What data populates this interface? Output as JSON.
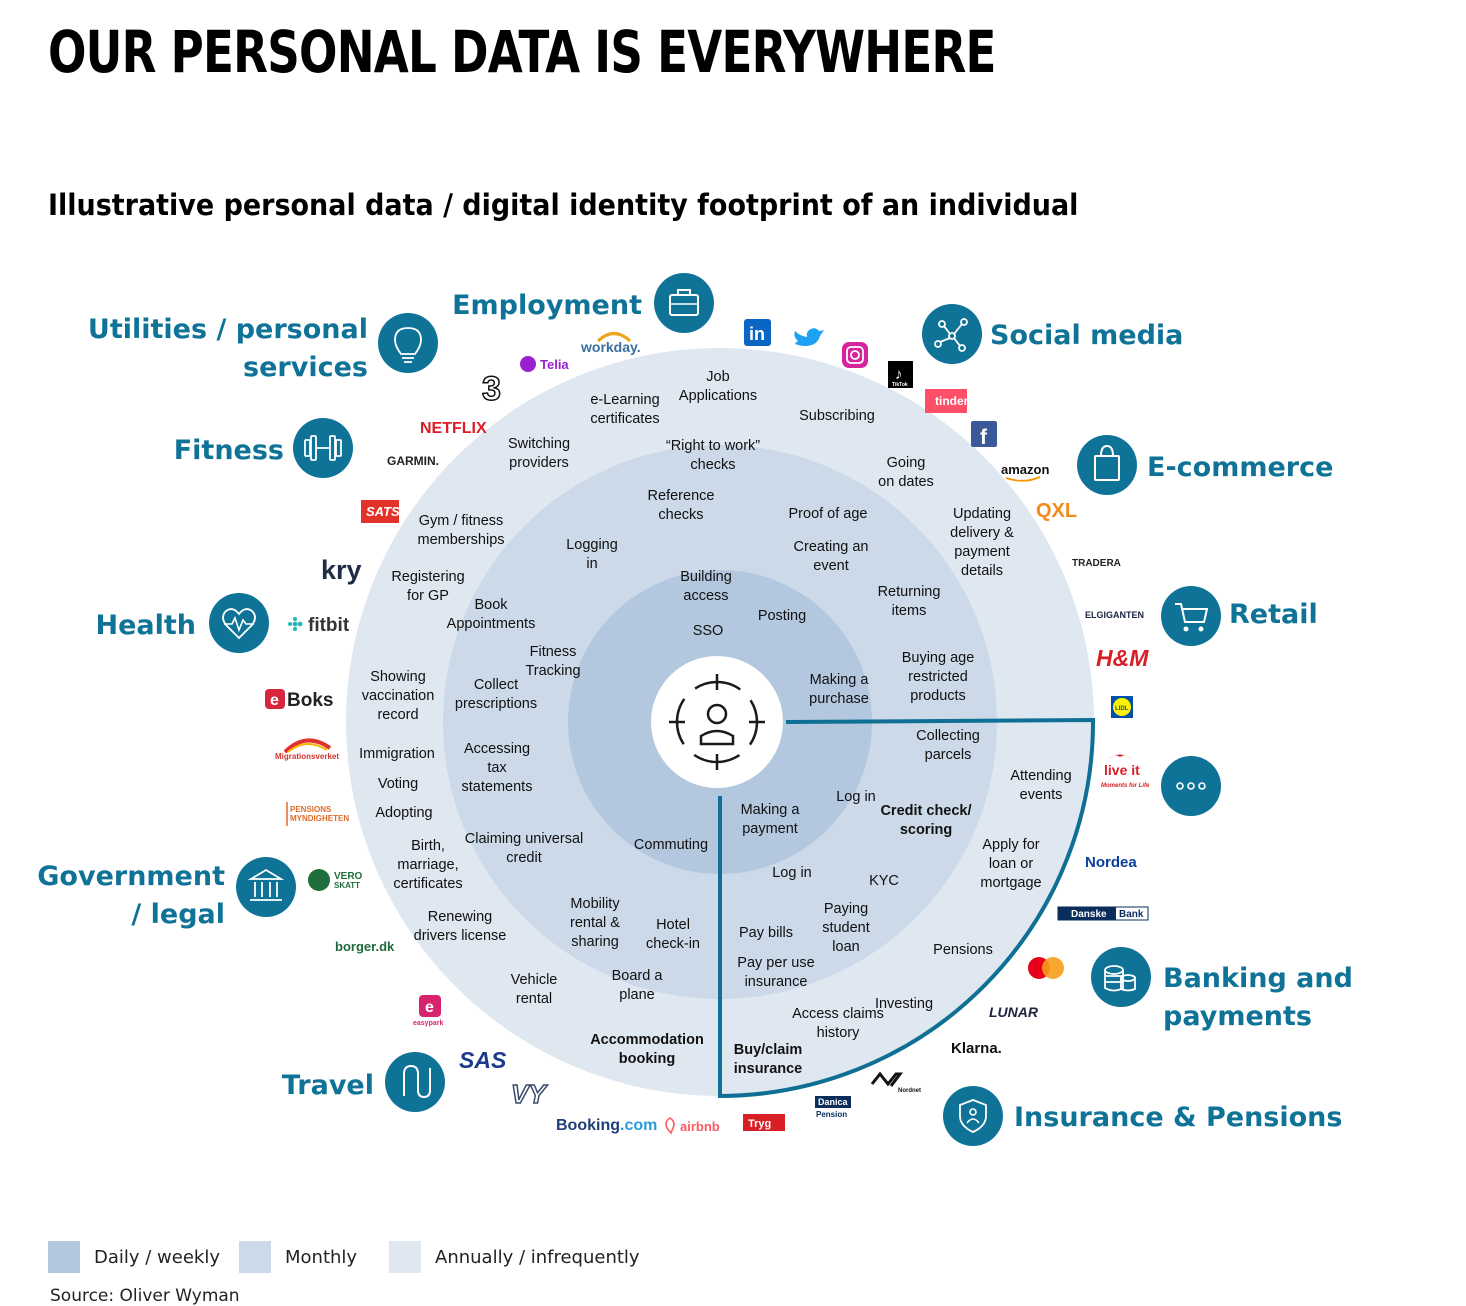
{
  "title": "OUR PERSONAL DATA IS EVERYWHERE",
  "subtitle": "Illustrative personal data / digital identity footprint of an individual",
  "colors": {
    "accent": "#0f7398",
    "ring_daily": "#b3c8de",
    "ring_monthly": "#cbd9e8",
    "ring_annual": "#dfe7f1",
    "highlight_border": "#0f6f94"
  },
  "categories": {
    "employment": "Employment",
    "social_media": "Social media",
    "ecommerce": "E-commerce",
    "retail": "Retail",
    "banking": [
      "Banking and",
      "payments"
    ],
    "insurance": "Insurance & Pensions",
    "travel": "Travel",
    "government": [
      "Government",
      "/ legal"
    ],
    "health": "Health",
    "fitness": "Fitness",
    "utilities": [
      "Utilities / personal",
      "services"
    ]
  },
  "category_icons": {
    "employment": "briefcase-icon",
    "social_media": "network-icon",
    "ecommerce": "shopping-bag-icon",
    "retail": "shopping-cart-icon",
    "more": "more-icon",
    "banking": "coins-icon",
    "insurance": "shield-person-icon",
    "travel": "route-icon",
    "government": "bank-building-icon",
    "health": "heart-pulse-icon",
    "fitness": "dumbbell-icon",
    "utilities": "lightbulb-icon",
    "center": "user-target-icon"
  },
  "activities": {
    "job_applications": [
      "Job",
      "Applications"
    ],
    "elearning": [
      "e-Learning",
      "certificates"
    ],
    "subscribing": [
      "Subscribing"
    ],
    "switching": [
      "Switching",
      "providers"
    ],
    "right_to_work": [
      "“Right to work”",
      "checks"
    ],
    "going_on_dates": [
      "Going",
      "on dates"
    ],
    "reference_checks": [
      "Reference",
      "checks"
    ],
    "proof_of_age": [
      "Proof of age"
    ],
    "gym": [
      "Gym / fitness",
      "memberships"
    ],
    "updating_delivery": [
      "Updating",
      "delivery &",
      "payment",
      "details"
    ],
    "logging_in": [
      "Logging",
      "in"
    ],
    "creating_event": [
      "Creating an",
      "event"
    ],
    "registering_gp": [
      "Registering",
      "for GP"
    ],
    "building_access": [
      "Building",
      "access"
    ],
    "returning_items": [
      "Returning",
      "items"
    ],
    "book_appointments": [
      "Book",
      "Appointments"
    ],
    "posting": [
      "Posting"
    ],
    "sso": [
      "SSO"
    ],
    "fitness_tracking": [
      "Fitness",
      "Tracking"
    ],
    "buying_age": [
      "Buying age",
      "restricted",
      "products"
    ],
    "showing_vaccination": [
      "Showing",
      "vaccination",
      "record"
    ],
    "collect_prescriptions": [
      "Collect",
      "prescriptions"
    ],
    "making_purchase": [
      "Making a",
      "purchase"
    ],
    "collecting_parcels": [
      "Collecting",
      "parcels"
    ],
    "immigration": [
      "Immigration"
    ],
    "accessing_tax": [
      "Accessing",
      "tax",
      "statements"
    ],
    "attending_events": [
      "Attending",
      "events"
    ],
    "voting": [
      "Voting"
    ],
    "log_in_1": [
      "Log in"
    ],
    "making_payment": [
      "Making a",
      "payment"
    ],
    "credit_check": [
      "Credit check/",
      "scoring"
    ],
    "adopting": [
      "Adopting"
    ],
    "claiming_credit": [
      "Claiming universal",
      "credit"
    ],
    "commuting": [
      "Commuting"
    ],
    "apply_loan": [
      "Apply for",
      "loan or",
      "mortgage"
    ],
    "birth": [
      "Birth,",
      "marriage,",
      "certificates"
    ],
    "log_in_2": [
      "Log in"
    ],
    "kyc": [
      "KYC"
    ],
    "mobility": [
      "Mobility",
      "rental &",
      "sharing"
    ],
    "renewing": [
      "Renewing",
      "drivers license"
    ],
    "hotel": [
      "Hotel",
      "check-in"
    ],
    "paying_loan": [
      "Paying",
      "student",
      "loan"
    ],
    "pay_bills": [
      "Pay bills"
    ],
    "pensions": [
      "Pensions"
    ],
    "pay_per_use": [
      "Pay per use",
      "insurance"
    ],
    "board_plane": [
      "Board a",
      "plane"
    ],
    "vehicle_rental": [
      "Vehicle",
      "rental"
    ],
    "investing": [
      "Investing"
    ],
    "access_claims": [
      "Access claims",
      "history"
    ],
    "accommodation": [
      "Accommodation",
      "booking"
    ],
    "buy_claim": [
      "Buy/claim",
      "insurance"
    ]
  },
  "logos": {
    "workday": "workday.",
    "telia": "Telia",
    "three": "3",
    "netflix": "NETFLIX",
    "garmin": "GARMIN.",
    "sats": "SATS",
    "kry": "kry",
    "fitbit": "fitbit",
    "eboks_e": "e",
    "eboks": "Boks",
    "migrationsverket": "Migrationsverket",
    "pensions1": "PENSIONS",
    "pensions2": "MYNDIGHETEN",
    "vero1": "VERO",
    "vero2": "SKATT",
    "borger": "borger.dk",
    "easypark": "easypark",
    "sas": "SAS",
    "vy": "VY",
    "booking": "Booking",
    "booking_com": ".com",
    "airbnb": "airbnb",
    "tryg": "Tryg",
    "danica1": "Danica",
    "danica2": "Pension",
    "nordnet": "Nordnet",
    "klarna": "Klarna.",
    "lunar": "LUNAR",
    "danske1": "Danske",
    "danske2": "Bank",
    "nordea": "Nordea",
    "liveit": "live it",
    "liveit_sub": "Moments for Life",
    "lidl": "LIDL",
    "hm": "H&M",
    "elgiganten": "ELGIGANTEN",
    "tradera": "TRADERA",
    "qxl": "QXL",
    "amazon": "amazon",
    "facebook": "f",
    "tinder": "tinder",
    "tiktok": "TikTok",
    "linkedin": "in"
  },
  "legend": [
    "Daily / weekly",
    "Monthly",
    "Annually / infrequently"
  ],
  "source": "Source: Oliver Wyman"
}
